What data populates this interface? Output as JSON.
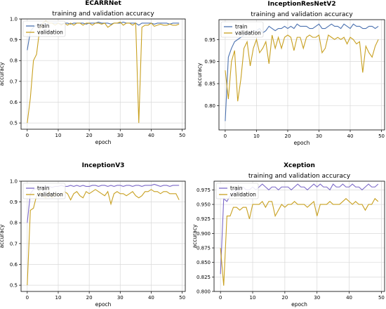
{
  "chart_data": [
    {
      "type": "line",
      "name": "ECARRNet",
      "title": "training and validation accuracy",
      "xlabel": "epoch",
      "ylabel": "accuracy",
      "xlim": [
        -2,
        51
      ],
      "ylim": [
        0.47,
        1.0
      ],
      "xticks": [
        0,
        10,
        20,
        30,
        40,
        50
      ],
      "yticks": [
        0.5,
        0.6,
        0.7,
        0.8,
        0.9,
        1.0
      ],
      "ytick_labels": [
        "0.5",
        "0.6",
        "0.7",
        "0.8",
        "0.9",
        "1.0"
      ],
      "grid": true,
      "legend": "top-left",
      "series": [
        {
          "name": "train",
          "color": "#4c72b0",
          "values": [
            0.85,
            0.94,
            0.96,
            0.97,
            0.975,
            0.98,
            0.975,
            0.98,
            0.98,
            0.98,
            0.98,
            0.975,
            0.98,
            0.98,
            0.975,
            0.98,
            0.98,
            0.98,
            0.98,
            0.975,
            0.98,
            0.98,
            0.98,
            0.985,
            0.98,
            0.98,
            0.98,
            0.975,
            0.98,
            0.98,
            0.98,
            0.985,
            0.98,
            0.98,
            0.98,
            0.98,
            0.97,
            0.98,
            0.98,
            0.98,
            0.98,
            0.975,
            0.98,
            0.98,
            0.98,
            0.98,
            0.975,
            0.98,
            0.98,
            0.98
          ]
        },
        {
          "name": "validation",
          "color": "#c8a020",
          "values": [
            0.5,
            0.62,
            0.8,
            0.83,
            0.95,
            0.98,
            0.99,
            0.98,
            0.98,
            0.97,
            0.98,
            0.97,
            0.98,
            0.97,
            0.98,
            0.97,
            0.98,
            0.98,
            0.97,
            0.98,
            0.98,
            0.97,
            0.98,
            0.98,
            0.975,
            0.98,
            0.96,
            0.97,
            0.98,
            0.98,
            0.985,
            0.97,
            0.98,
            0.98,
            0.97,
            0.98,
            0.5,
            0.96,
            0.97,
            0.97,
            0.98,
            0.965,
            0.97,
            0.975,
            0.97,
            0.97,
            0.975,
            0.97,
            0.97,
            0.975
          ]
        }
      ]
    },
    {
      "type": "line",
      "name": "InceptionResNetV2",
      "title": "training and validation accuracy",
      "xlabel": "epoch",
      "ylabel": "accuracy",
      "xlim": [
        -2,
        51
      ],
      "ylim": [
        0.745,
        0.995
      ],
      "xticks": [
        0,
        10,
        20,
        30,
        40,
        50
      ],
      "yticks": [
        0.8,
        0.85,
        0.9,
        0.95
      ],
      "ytick_labels": [
        "0.80",
        "0.85",
        "0.90",
        "0.95"
      ],
      "grid": true,
      "legend": "top-left",
      "series": [
        {
          "name": "train",
          "color": "#4c72b0",
          "values": [
            0.765,
            0.91,
            0.93,
            0.945,
            0.95,
            0.955,
            0.96,
            0.965,
            0.965,
            0.97,
            0.97,
            0.975,
            0.965,
            0.97,
            0.98,
            0.975,
            0.97,
            0.975,
            0.975,
            0.98,
            0.975,
            0.98,
            0.975,
            0.985,
            0.98,
            0.98,
            0.98,
            0.975,
            0.975,
            0.98,
            0.985,
            0.975,
            0.975,
            0.98,
            0.985,
            0.98,
            0.98,
            0.975,
            0.985,
            0.98,
            0.975,
            0.985,
            0.98,
            0.98,
            0.975,
            0.975,
            0.98,
            0.98,
            0.975,
            0.98
          ]
        },
        {
          "name": "validation",
          "color": "#c8a020",
          "values": [
            0.88,
            0.815,
            0.9,
            0.925,
            0.81,
            0.86,
            0.93,
            0.945,
            0.89,
            0.93,
            0.95,
            0.92,
            0.93,
            0.945,
            0.895,
            0.96,
            0.93,
            0.955,
            0.93,
            0.955,
            0.96,
            0.955,
            0.925,
            0.955,
            0.955,
            0.93,
            0.955,
            0.96,
            0.955,
            0.955,
            0.96,
            0.92,
            0.93,
            0.96,
            0.955,
            0.95,
            0.955,
            0.95,
            0.955,
            0.94,
            0.955,
            0.95,
            0.94,
            0.945,
            0.875,
            0.935,
            0.92,
            0.91,
            0.935,
            0.95
          ]
        }
      ]
    },
    {
      "type": "line",
      "name": "InceptionV3",
      "title": "",
      "xlabel": "epoch",
      "ylabel": "accuracy",
      "xlim": [
        -2,
        51
      ],
      "ylim": [
        0.47,
        1.0
      ],
      "xticks": [
        0,
        10,
        20,
        30,
        40,
        50
      ],
      "yticks": [
        0.5,
        0.6,
        0.7,
        0.8,
        0.9,
        1.0
      ],
      "ytick_labels": [
        "0.5",
        "0.6",
        "0.7",
        "0.8",
        "0.9",
        "1.0"
      ],
      "grid": true,
      "legend": "top-left",
      "series": [
        {
          "name": "train",
          "color": "#7b68c8",
          "values": [
            0.8,
            0.94,
            0.96,
            0.965,
            0.97,
            0.97,
            0.975,
            0.975,
            0.97,
            0.975,
            0.975,
            0.98,
            0.975,
            0.975,
            0.98,
            0.975,
            0.98,
            0.975,
            0.98,
            0.975,
            0.975,
            0.98,
            0.98,
            0.975,
            0.98,
            0.98,
            0.975,
            0.98,
            0.975,
            0.98,
            0.98,
            0.975,
            0.98,
            0.98,
            0.975,
            0.98,
            0.98,
            0.975,
            0.98,
            0.98,
            0.98,
            0.985,
            0.98,
            0.975,
            0.98,
            0.98,
            0.975,
            0.98,
            0.98,
            0.98
          ]
        },
        {
          "name": "validation",
          "color": "#c8a020",
          "values": [
            0.5,
            0.86,
            0.87,
            0.93,
            0.95,
            0.93,
            0.92,
            0.95,
            0.92,
            0.94,
            0.93,
            0.93,
            0.95,
            0.94,
            0.91,
            0.94,
            0.95,
            0.93,
            0.92,
            0.95,
            0.94,
            0.95,
            0.96,
            0.95,
            0.94,
            0.93,
            0.95,
            0.89,
            0.94,
            0.95,
            0.94,
            0.94,
            0.93,
            0.94,
            0.95,
            0.93,
            0.92,
            0.93,
            0.95,
            0.95,
            0.96,
            0.95,
            0.95,
            0.94,
            0.95,
            0.95,
            0.94,
            0.94,
            0.94,
            0.91
          ]
        }
      ]
    },
    {
      "type": "line",
      "name": "Xception",
      "title": "training and validation accuracy",
      "xlabel": "epoch",
      "ylabel": "accuracy",
      "xlim": [
        -2,
        51
      ],
      "ylim": [
        0.8,
        0.99
      ],
      "xticks": [
        0,
        10,
        20,
        30,
        40,
        50
      ],
      "yticks": [
        0.8,
        0.825,
        0.85,
        0.875,
        0.9,
        0.925,
        0.95,
        0.975
      ],
      "ytick_labels": [
        "0.800",
        "0.825",
        "0.850",
        "0.875",
        "0.900",
        "0.925",
        "0.950",
        "0.975"
      ],
      "grid": true,
      "legend": "top-left",
      "series": [
        {
          "name": "train",
          "color": "#7b68c8",
          "values": [
            0.83,
            0.96,
            0.955,
            0.965,
            0.97,
            0.975,
            0.975,
            0.98,
            0.975,
            0.975,
            0.98,
            0.975,
            0.98,
            0.985,
            0.98,
            0.975,
            0.98,
            0.98,
            0.975,
            0.98,
            0.98,
            0.98,
            0.975,
            0.98,
            0.985,
            0.98,
            0.98,
            0.975,
            0.98,
            0.985,
            0.98,
            0.985,
            0.98,
            0.98,
            0.975,
            0.985,
            0.98,
            0.98,
            0.985,
            0.98,
            0.98,
            0.985,
            0.98,
            0.98,
            0.975,
            0.98,
            0.985,
            0.98,
            0.98,
            0.985
          ]
        },
        {
          "name": "validation",
          "color": "#c8a020",
          "values": [
            0.875,
            0.81,
            0.93,
            0.93,
            0.945,
            0.945,
            0.94,
            0.945,
            0.945,
            0.925,
            0.95,
            0.95,
            0.95,
            0.955,
            0.945,
            0.955,
            0.955,
            0.93,
            0.94,
            0.95,
            0.945,
            0.95,
            0.95,
            0.955,
            0.95,
            0.95,
            0.95,
            0.945,
            0.95,
            0.955,
            0.93,
            0.95,
            0.95,
            0.95,
            0.955,
            0.95,
            0.95,
            0.95,
            0.955,
            0.96,
            0.955,
            0.95,
            0.955,
            0.95,
            0.95,
            0.94,
            0.95,
            0.95,
            0.96,
            0.955
          ]
        }
      ]
    }
  ]
}
